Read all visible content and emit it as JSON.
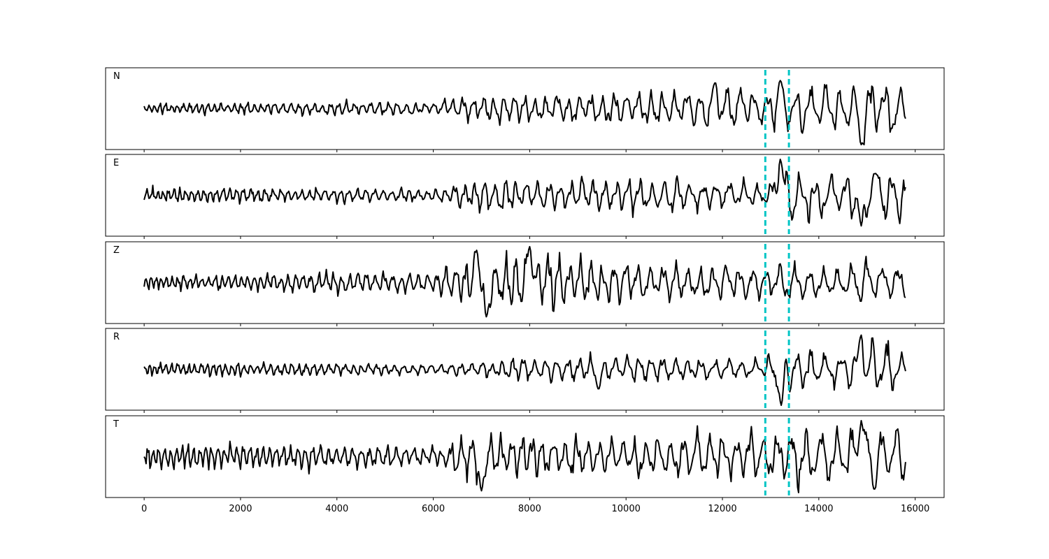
{
  "chart_data": {
    "type": "line",
    "title": "",
    "xlabel": "",
    "ylabel": "",
    "xlim": [
      -800,
      16600
    ],
    "x_ticks": [
      0,
      2000,
      4000,
      6000,
      8000,
      10000,
      12000,
      14000,
      16000
    ],
    "x_tick_labels": [
      "0",
      "2000",
      "4000",
      "6000",
      "8000",
      "10000",
      "12000",
      "14000",
      "16000"
    ],
    "grid": false,
    "line_color": "#000000",
    "marker_color": "#00c5c5",
    "markers": [
      12890,
      13380
    ],
    "n_samples": 15800,
    "panels": [
      {
        "label": "N",
        "envelope": [
          [
            0,
            0.15
          ],
          [
            2000,
            0.2
          ],
          [
            4000,
            0.22
          ],
          [
            6000,
            0.18
          ],
          [
            6900,
            0.42
          ],
          [
            8000,
            0.45
          ],
          [
            10000,
            0.5
          ],
          [
            12000,
            0.62
          ],
          [
            12900,
            0.55
          ],
          [
            13200,
            0.75
          ],
          [
            14500,
            0.65
          ],
          [
            14900,
            1.0
          ],
          [
            15800,
            0.8
          ]
        ],
        "events": [
          [
            14880,
            -1.0
          ],
          [
            13200,
            0.78
          ],
          [
            11850,
            0.72
          ]
        ]
      },
      {
        "label": "E",
        "envelope": [
          [
            0,
            0.2
          ],
          [
            2000,
            0.25
          ],
          [
            4000,
            0.22
          ],
          [
            6000,
            0.18
          ],
          [
            6900,
            0.45
          ],
          [
            8000,
            0.5
          ],
          [
            10000,
            0.55
          ],
          [
            12000,
            0.45
          ],
          [
            12900,
            0.4
          ],
          [
            13200,
            0.95
          ],
          [
            14500,
            0.6
          ],
          [
            14900,
            0.95
          ],
          [
            15800,
            0.75
          ]
        ],
        "events": [
          [
            13200,
            1.0
          ],
          [
            14880,
            -0.85
          ],
          [
            15150,
            0.6
          ]
        ]
      },
      {
        "label": "Z",
        "envelope": [
          [
            0,
            0.2
          ],
          [
            2000,
            0.25
          ],
          [
            4000,
            0.35
          ],
          [
            6000,
            0.3
          ],
          [
            6500,
            0.7
          ],
          [
            8000,
            0.85
          ],
          [
            10000,
            0.6
          ],
          [
            12000,
            0.55
          ],
          [
            12900,
            0.45
          ],
          [
            13300,
            0.55
          ],
          [
            14500,
            0.5
          ],
          [
            14900,
            0.75
          ],
          [
            15800,
            0.55
          ]
        ],
        "events": [
          [
            8000,
            1.0
          ],
          [
            7100,
            -0.95
          ],
          [
            6900,
            0.9
          ]
        ]
      },
      {
        "label": "R",
        "envelope": [
          [
            0,
            0.18
          ],
          [
            2000,
            0.22
          ],
          [
            4000,
            0.2
          ],
          [
            6000,
            0.15
          ],
          [
            6900,
            0.25
          ],
          [
            8000,
            0.35
          ],
          [
            10000,
            0.4
          ],
          [
            12000,
            0.35
          ],
          [
            12900,
            0.3
          ],
          [
            13200,
            0.8
          ],
          [
            14500,
            0.5
          ],
          [
            14900,
            0.95
          ],
          [
            15800,
            0.65
          ]
        ],
        "events": [
          [
            14880,
            0.95
          ],
          [
            13220,
            -1.0
          ],
          [
            9430,
            -0.55
          ]
        ]
      },
      {
        "label": "T",
        "envelope": [
          [
            0,
            0.4
          ],
          [
            2000,
            0.4
          ],
          [
            4000,
            0.35
          ],
          [
            6000,
            0.3
          ],
          [
            6900,
            0.75
          ],
          [
            8000,
            0.7
          ],
          [
            10000,
            0.6
          ],
          [
            12000,
            0.8
          ],
          [
            12900,
            0.7
          ],
          [
            13200,
            0.85
          ],
          [
            14500,
            0.75
          ],
          [
            14900,
            1.0
          ],
          [
            15800,
            0.85
          ]
        ],
        "events": [
          [
            14880,
            1.0
          ],
          [
            15150,
            -0.9
          ],
          [
            7000,
            -0.95
          ]
        ]
      }
    ]
  }
}
